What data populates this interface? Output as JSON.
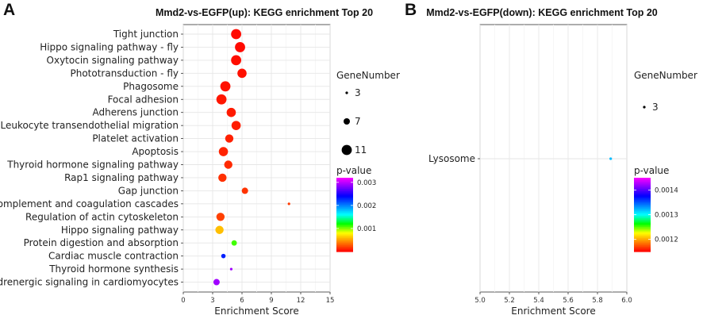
{
  "chart_data": [
    {
      "panel": "A",
      "type": "scatter",
      "title": "Mmd2-vs-EGFP(up): KEGG enrichment Top 20",
      "xlabel": "Enrichment Score",
      "ylabel": "",
      "xlim": [
        0,
        15
      ],
      "xticks": [
        0,
        3,
        6,
        9,
        12,
        15
      ],
      "categories": [
        "Tight junction",
        "Hippo signaling pathway - fly",
        "Oxytocin signaling pathway",
        "Phototransduction - fly",
        "Phagosome",
        "Focal adhesion",
        "Adherens junction",
        "Leukocyte transendothelial migration",
        "Platelet activation",
        "Apoptosis",
        "Thyroid hormone signaling pathway",
        "Rap1 signaling pathway",
        "Gap junction",
        "Complement and coagulation cascades",
        "Regulation of actin cytoskeleton",
        "Hippo signaling pathway",
        "Protein digestion and absorption",
        "Cardiac muscle contraction",
        "Thyroid hormone synthesis",
        "Adrenergic signaling in cardiomyocytes"
      ],
      "enrichment": [
        5.4,
        5.8,
        5.4,
        6.0,
        4.3,
        3.9,
        4.9,
        5.4,
        4.7,
        4.1,
        4.6,
        4.0,
        6.3,
        10.8,
        3.8,
        3.7,
        5.2,
        4.1,
        4.9,
        3.4
      ],
      "gene_number": [
        11,
        11,
        11,
        10,
        11,
        11,
        10,
        10,
        9,
        10,
        9,
        9,
        7,
        3,
        9,
        9,
        6,
        5,
        3,
        7
      ],
      "pvalue": [
        3e-05,
        3e-05,
        4e-05,
        5e-05,
        5e-05,
        7e-05,
        8e-05,
        9e-05,
        0.0001,
        0.00011,
        0.00013,
        0.00015,
        0.00016,
        0.00018,
        0.0002,
        0.0006,
        0.0011,
        0.0023,
        0.0029,
        0.0029
      ],
      "size_legend": {
        "title": "GeneNumber",
        "values": [
          3,
          7,
          11
        ]
      },
      "color_legend": {
        "title": "p-value",
        "range": [
          0,
          0.0032
        ],
        "ticks": [
          0.003,
          0.002,
          0.001
        ],
        "tick_labels": [
          "0.003",
          "0.002",
          "0.001"
        ]
      }
    },
    {
      "panel": "B",
      "type": "scatter",
      "title": "Mmd2-vs-EGFP(down): KEGG enrichment Top 20",
      "xlabel": "Enrichment Score",
      "ylabel": "",
      "xlim": [
        5.0,
        6.0
      ],
      "xticks": [
        5.0,
        5.2,
        5.4,
        5.6,
        5.8,
        6.0
      ],
      "xtick_labels": [
        "5.0",
        "5.2",
        "5.4",
        "5.6",
        "5.8",
        "6.0"
      ],
      "categories": [
        "Lysosome"
      ],
      "enrichment": [
        5.89
      ],
      "gene_number": [
        3
      ],
      "pvalue": [
        0.00132
      ],
      "size_legend": {
        "title": "GeneNumber",
        "values": [
          3
        ]
      },
      "color_legend": {
        "title": "p-value",
        "range": [
          0.00115,
          0.00145
        ],
        "ticks": [
          0.0014,
          0.0013,
          0.0012
        ],
        "tick_labels": [
          "0.0014",
          "0.0013",
          "0.0012"
        ]
      }
    }
  ],
  "colors": {
    "colormap": [
      "#ff0000",
      "#ff8000",
      "#ffff00",
      "#00ff00",
      "#00ffff",
      "#0080ff",
      "#0000ff",
      "#8000ff",
      "#ff00ff"
    ],
    "panel_border": "#333333",
    "grid": "#e6e6e6"
  }
}
